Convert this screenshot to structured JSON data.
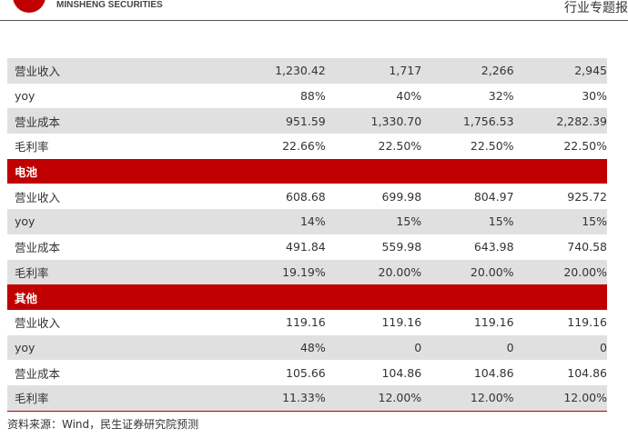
{
  "header": {
    "brand": "MINSHENG SECURITIES",
    "report_type": "行业专题报"
  },
  "table": {
    "rows": [
      [
        "营业收入",
        "1,230.42",
        "1,717",
        "2,266",
        "2,945"
      ],
      [
        "yoy",
        "88%",
        "40%",
        "32%",
        "30%"
      ],
      [
        "营业成本",
        "951.59",
        "1,330.70",
        "1,756.53",
        "2,282.39"
      ],
      [
        "毛利率",
        "22.66%",
        "22.50%",
        "22.50%",
        "22.50%"
      ],
      [
        "电池"
      ],
      [
        "营业收入",
        "608.68",
        "699.98",
        "804.97",
        "925.72"
      ],
      [
        "yoy",
        "14%",
        "15%",
        "15%",
        "15%"
      ],
      [
        "营业成本",
        "491.84",
        "559.98",
        "643.98",
        "740.58"
      ],
      [
        "毛利率",
        "19.19%",
        "20.00%",
        "20.00%",
        "20.00%"
      ],
      [
        "其他"
      ],
      [
        "营业收入",
        "119.16",
        "119.16",
        "119.16",
        "119.16"
      ],
      [
        "yoy",
        "48%",
        "0",
        "0",
        "0"
      ],
      [
        "营业成本",
        "105.66",
        "104.86",
        "104.86",
        "104.86"
      ],
      [
        "毛利率",
        "11.33%",
        "12.00%",
        "12.00%",
        "12.00%"
      ]
    ]
  },
  "source": "资料来源：Wind，民生证券研究院预测"
}
